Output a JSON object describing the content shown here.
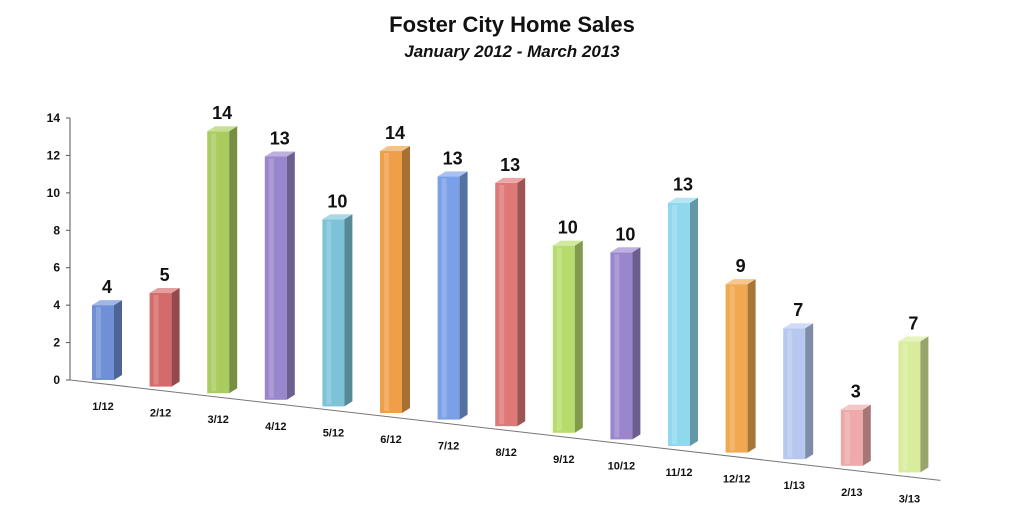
{
  "chart_data": {
    "type": "bar",
    "title": "Foster City Home Sales",
    "subtitle": "January 2012 - March 2013",
    "xlabel": "",
    "ylabel": "",
    "ylim": [
      0,
      14
    ],
    "yticks": [
      0,
      2,
      4,
      6,
      8,
      10,
      12,
      14
    ],
    "categories": [
      "1/12",
      "2/12",
      "3/12",
      "4/12",
      "5/12",
      "6/12",
      "7/12",
      "8/12",
      "9/12",
      "10/12",
      "11/12",
      "12/12",
      "1/13",
      "2/13",
      "3/13"
    ],
    "values": [
      4,
      5,
      14,
      13,
      10,
      14,
      13,
      13,
      10,
      10,
      13,
      9,
      7,
      3,
      7
    ],
    "data_labels": [
      "4",
      "5",
      "14",
      "13",
      "10",
      "14",
      "13",
      "13",
      "10",
      "10",
      "13",
      "9",
      "7",
      "3",
      "7"
    ],
    "grid": false,
    "legend": "none",
    "colors": [
      "#6f8fd6",
      "#d46a6a",
      "#a9cc5e",
      "#9a86cc",
      "#7cc3d8",
      "#ef9f48",
      "#7aa0e8",
      "#e07878",
      "#b8dc6c",
      "#9a86cc",
      "#8fd8ee",
      "#f0a950",
      "#b6c8f0",
      "#eeaaaa",
      "#d8ec9c"
    ]
  }
}
